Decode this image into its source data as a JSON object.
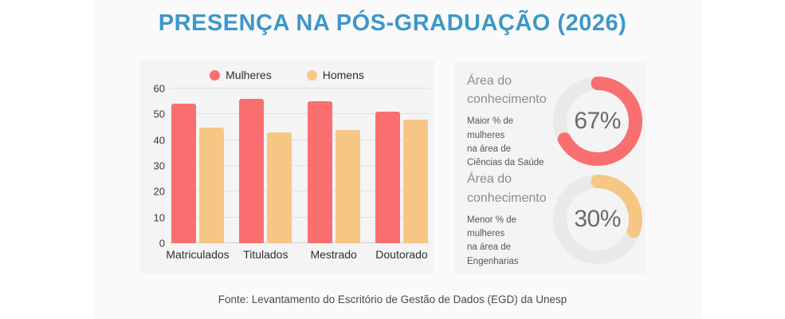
{
  "title": "PRESENÇA NA PÓS-GRADUAÇÃO (2026)",
  "footer": "Fonte: Levantamento do Escritório de Gestão de Dados (EGD) da Unesp",
  "colors": {
    "title_blue": "#3f97c8",
    "mulheres_red": "#f96f6f",
    "homens_tan": "#f6c784",
    "donut_track": "#e9e9e9",
    "card_bg": "#f4f4f4",
    "band_bg": "#fafafa"
  },
  "chart_data": [
    {
      "type": "bar",
      "title": "",
      "categories": [
        "Matriculados",
        "Titulados",
        "Mestrado",
        "Doutorado"
      ],
      "series": [
        {
          "name": "Mulheres",
          "color": "#f96f6f",
          "values": [
            54,
            56,
            55,
            51
          ]
        },
        {
          "name": "Homens",
          "color": "#f6c784",
          "values": [
            45,
            43,
            44,
            48
          ]
        }
      ],
      "ylim": [
        0,
        60
      ],
      "yticks": [
        0,
        10,
        20,
        30,
        40,
        50,
        60
      ],
      "grid": true,
      "legend_position": "top"
    },
    {
      "type": "pie",
      "variant": "donut",
      "label": "Área do\nconhecimento",
      "description": "Maior % de mulheres\nna área de\nCiências da Saúde",
      "value_pct": 67,
      "value_label": "67%",
      "color": "#f96f6f",
      "track_color": "#e9e9e9"
    },
    {
      "type": "pie",
      "variant": "donut",
      "label": "Área do\nconhecimento",
      "description": "Menor % de mulheres\nna área de\nEngenharias",
      "value_pct": 30,
      "value_label": "30%",
      "color": "#f6c784",
      "track_color": "#e9e9e9"
    }
  ]
}
